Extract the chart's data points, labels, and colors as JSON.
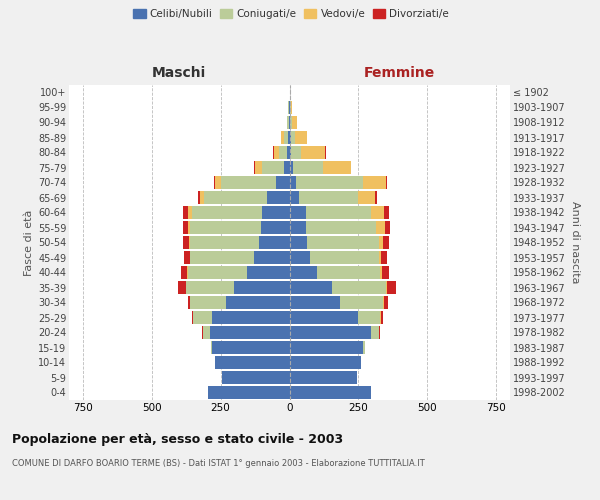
{
  "age_groups": [
    "0-4",
    "5-9",
    "10-14",
    "15-19",
    "20-24",
    "25-29",
    "30-34",
    "35-39",
    "40-44",
    "45-49",
    "50-54",
    "55-59",
    "60-64",
    "65-69",
    "70-74",
    "75-79",
    "80-84",
    "85-89",
    "90-94",
    "95-99",
    "100+"
  ],
  "birth_years": [
    "1998-2002",
    "1993-1997",
    "1988-1992",
    "1983-1987",
    "1978-1982",
    "1973-1977",
    "1968-1972",
    "1963-1967",
    "1958-1962",
    "1953-1957",
    "1948-1952",
    "1943-1947",
    "1938-1942",
    "1933-1937",
    "1928-1932",
    "1923-1927",
    "1918-1922",
    "1913-1917",
    "1908-1912",
    "1903-1907",
    "≤ 1902"
  ],
  "maschi": {
    "celibi": [
      295,
      245,
      270,
      280,
      290,
      280,
      230,
      200,
      155,
      130,
      110,
      105,
      100,
      80,
      50,
      20,
      8,
      5,
      3,
      2,
      0
    ],
    "coniugati": [
      0,
      0,
      0,
      5,
      25,
      70,
      130,
      175,
      215,
      230,
      250,
      255,
      255,
      230,
      200,
      80,
      30,
      15,
      5,
      2,
      0
    ],
    "vedovi": [
      0,
      0,
      0,
      0,
      0,
      0,
      0,
      0,
      1,
      2,
      5,
      8,
      12,
      15,
      20,
      25,
      20,
      10,
      2,
      0,
      0
    ],
    "divorziati": [
      0,
      0,
      0,
      0,
      2,
      4,
      8,
      28,
      22,
      22,
      22,
      18,
      18,
      8,
      4,
      2,
      1,
      0,
      0,
      0,
      0
    ]
  },
  "femmine": {
    "nubili": [
      295,
      245,
      260,
      265,
      295,
      250,
      185,
      155,
      100,
      75,
      65,
      60,
      60,
      35,
      25,
      12,
      5,
      5,
      3,
      2,
      0
    ],
    "coniugate": [
      0,
      0,
      0,
      8,
      30,
      80,
      155,
      195,
      230,
      250,
      260,
      255,
      235,
      215,
      240,
      110,
      35,
      15,
      5,
      2,
      0
    ],
    "vedove": [
      0,
      0,
      0,
      0,
      0,
      1,
      2,
      3,
      5,
      8,
      15,
      30,
      48,
      60,
      85,
      100,
      90,
      45,
      20,
      5,
      1
    ],
    "divorziate": [
      0,
      0,
      0,
      0,
      2,
      8,
      15,
      35,
      25,
      20,
      20,
      18,
      18,
      8,
      4,
      2,
      1,
      0,
      0,
      0,
      0
    ]
  },
  "colors": {
    "celibi": "#4A72B0",
    "coniugati": "#BBCC99",
    "vedovi": "#F0C060",
    "divorziati": "#CC2222"
  },
  "xlim": 800,
  "title": "Popolazione per età, sesso e stato civile - 2003",
  "subtitle": "COMUNE DI DARFO BOARIO TERME (BS) - Dati ISTAT 1° gennaio 2003 - Elaborazione TUTTITALIA.IT",
  "ylabel_left": "Fasce di età",
  "ylabel_right": "Anni di nascita",
  "xlabel_left": "Maschi",
  "xlabel_right": "Femmine",
  "bg_color": "#f0f0f0",
  "plot_bg": "#ffffff"
}
